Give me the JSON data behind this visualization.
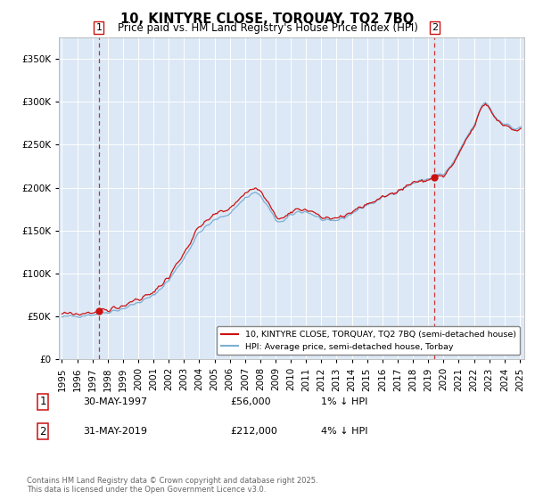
{
  "title": "10, KINTYRE CLOSE, TORQUAY, TQ2 7BQ",
  "subtitle": "Price paid vs. HM Land Registry's House Price Index (HPI)",
  "sale1_price": 56000,
  "sale1_pct": "1% ↓ HPI",
  "sale1_display": "30-MAY-1997",
  "sale2_price": 212000,
  "sale2_pct": "4% ↓ HPI",
  "sale2_display": "31-MAY-2019",
  "ylim": [
    0,
    375000
  ],
  "yticks": [
    0,
    50000,
    100000,
    150000,
    200000,
    250000,
    300000,
    350000
  ],
  "plot_bg_color": "#dce8f5",
  "line_color_hpi": "#7bafd4",
  "line_color_price": "#cc1111",
  "legend_label1": "10, KINTYRE CLOSE, TORQUAY, TQ2 7BQ (semi-detached house)",
  "legend_label2": "HPI: Average price, semi-detached house, Torbay",
  "footnote": "Contains HM Land Registry data © Crown copyright and database right 2025.\nThis data is licensed under the Open Government Licence v3.0.",
  "xstart": 1995,
  "xend": 2025
}
